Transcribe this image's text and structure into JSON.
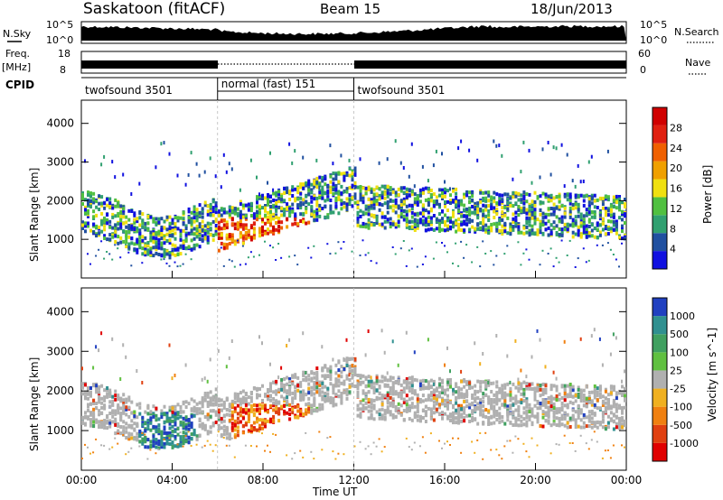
{
  "header": {
    "station": "Saskatoon (fitACF)",
    "beam": "Beam 15",
    "date": "18/Jun/2013"
  },
  "strip_labels": {
    "nsky": "N.Sky",
    "nsky_top": "10^5",
    "nsky_bottom": "10^0",
    "nsearch": "N.Search",
    "nsearch_top": "10^5",
    "nsearch_bottom": "10^0",
    "freq_line1": "Freq.",
    "freq_line2": "[MHz]",
    "freq_top": "18",
    "freq_bottom": "8",
    "nave": "Nave",
    "nave_top": "60",
    "nave_bottom": "0",
    "cpid": "CPID"
  },
  "cpid_segments": [
    {
      "label": "twofsound 3501",
      "start_hour": 0,
      "end_hour": 6
    },
    {
      "label": "normal (fast) 151",
      "start_hour": 6,
      "end_hour": 12
    },
    {
      "label": "twofsound 3501",
      "start_hour": 12,
      "end_hour": 24
    }
  ],
  "colors": {
    "power": [
      "#1010e0",
      "#2050a0",
      "#30a070",
      "#50c040",
      "#f0e010",
      "#f0a000",
      "#f06000",
      "#e02010",
      "#d00000"
    ],
    "velocity": [
      "#2040c0",
      "#309090",
      "#40a060",
      "#60c040",
      "#b0b0b0",
      "#f0b020",
      "#f08010",
      "#e04010",
      "#e00000"
    ]
  },
  "chart_data": [
    {
      "type": "heatmap",
      "panel": "power",
      "ylabel": "Slant Range [km]",
      "xlabel": "Time UT",
      "xlim": [
        0,
        24
      ],
      "ylim": [
        0,
        4600
      ],
      "xticks": [
        "00:00",
        "04:00",
        "08:00",
        "12:00",
        "16:00",
        "20:00",
        "00:00"
      ],
      "yticks": [
        1000,
        2000,
        3000,
        4000
      ],
      "colorbar": {
        "label": "Power [dB]",
        "ticks": [
          4,
          8,
          12,
          16,
          20,
          24,
          28
        ]
      }
    },
    {
      "type": "heatmap",
      "panel": "velocity",
      "ylabel": "Slant Range [km]",
      "xlabel": "Time UT",
      "xlim": [
        0,
        24
      ],
      "ylim": [
        0,
        4600
      ],
      "xticks": [
        "00:00",
        "04:00",
        "08:00",
        "12:00",
        "16:00",
        "20:00",
        "00:00"
      ],
      "yticks": [
        1000,
        2000,
        3000,
        4000
      ],
      "colorbar": {
        "label": "Velocity [m s^-1]",
        "ticks": [
          1000,
          500,
          100,
          25,
          -25,
          -100,
          -500,
          -1000
        ]
      }
    }
  ]
}
